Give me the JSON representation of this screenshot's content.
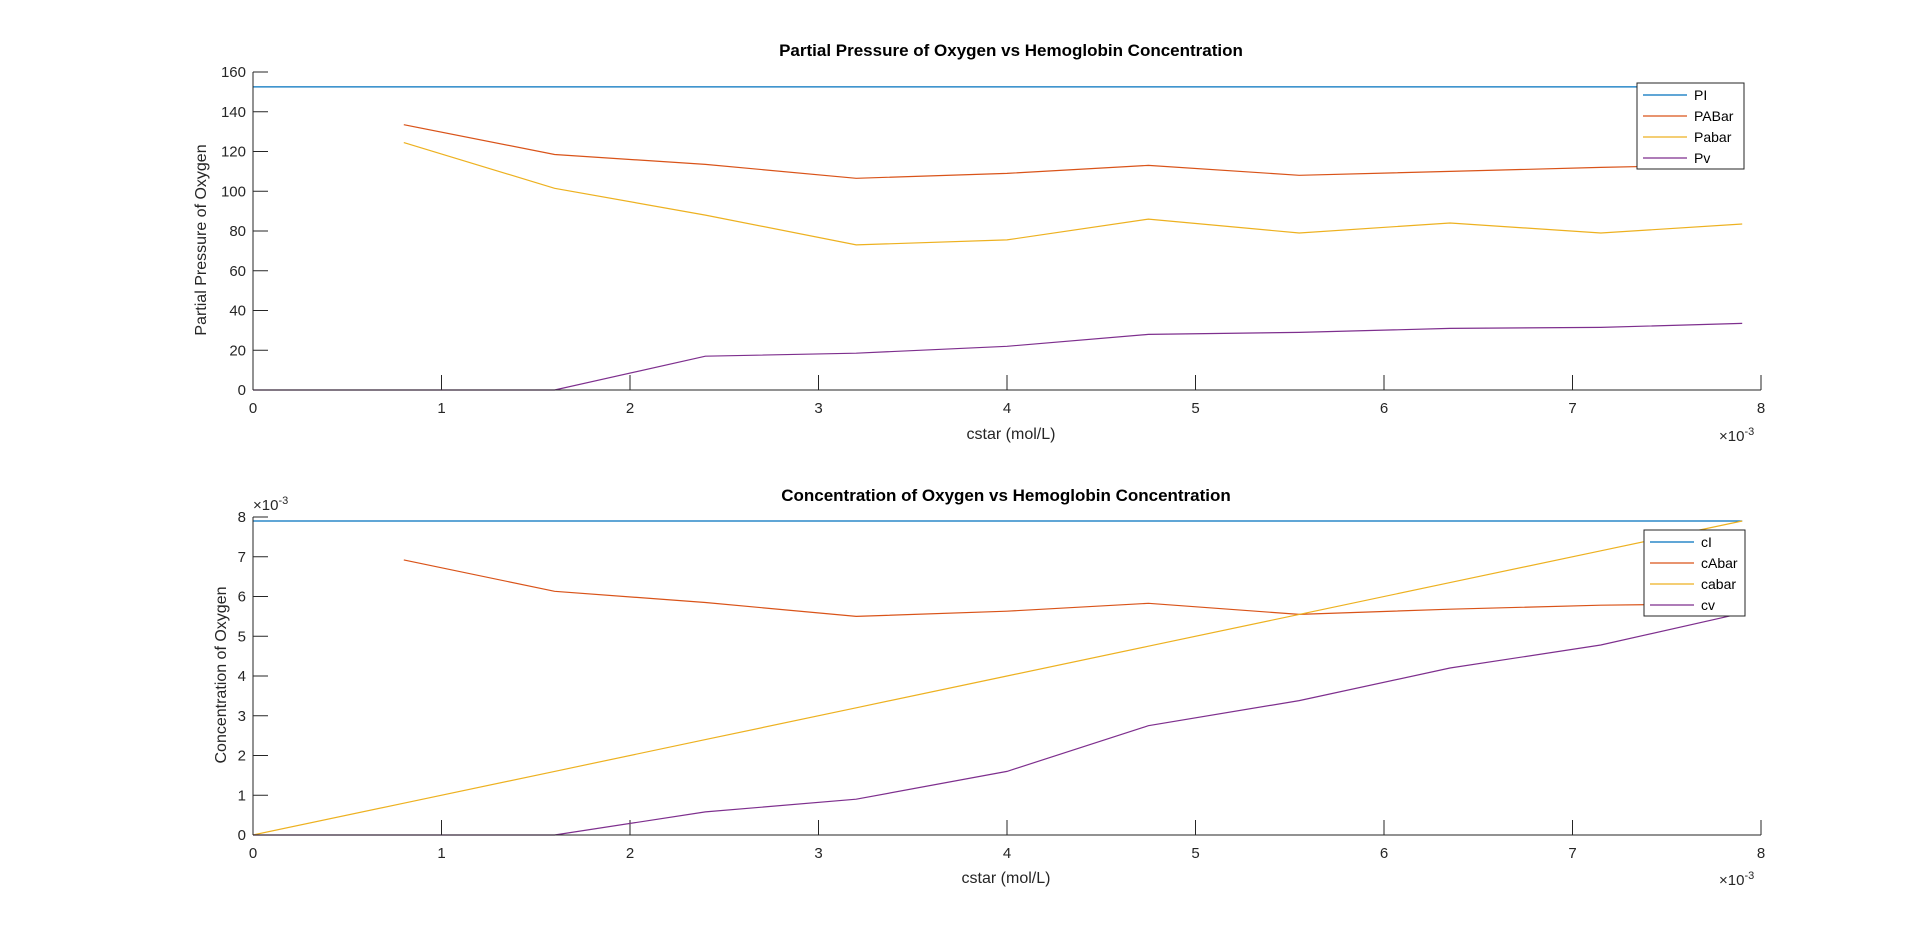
{
  "chart_data": [
    {
      "type": "line",
      "title": "Partial Pressure of Oxygen vs Hemoglobin Concentration",
      "xlabel": "cstar (mol/L)",
      "ylabel": "Partial Pressure of Oxygen",
      "x_exponent_base": "×10",
      "x_exponent_power": "-3",
      "xlim": [
        0,
        8
      ],
      "ylim": [
        0,
        160
      ],
      "xticks": [
        "0",
        "1",
        "2",
        "3",
        "4",
        "5",
        "6",
        "7",
        "8"
      ],
      "yticks": [
        "0",
        "20",
        "40",
        "60",
        "80",
        "100",
        "120",
        "140",
        "160"
      ],
      "grid": false,
      "legend_position": "top-right",
      "x": [
        0,
        0.8,
        1.6,
        2.4,
        3.2,
        4.0,
        4.75,
        5.55,
        6.35,
        7.15,
        7.9
      ],
      "series": [
        {
          "name": "PI",
          "color": "#0072BD",
          "values": [
            152.5,
            152.5,
            152.5,
            152.5,
            152.5,
            152.5,
            152.5,
            152.5,
            152.5,
            152.5,
            152.5
          ]
        },
        {
          "name": "PABar",
          "color": "#D95319",
          "values": [
            null,
            133.5,
            118.5,
            113.5,
            106.5,
            109,
            113,
            108,
            110,
            112,
            113.5
          ]
        },
        {
          "name": "Pabar",
          "color": "#EDB120",
          "values": [
            null,
            124.5,
            101.5,
            88,
            73,
            75.5,
            86,
            79,
            84,
            79,
            83.5
          ]
        },
        {
          "name": "Pv",
          "color": "#7E2F8E",
          "values": [
            0,
            0,
            0,
            17,
            18.5,
            22,
            28,
            29,
            31,
            31.5,
            33.5
          ]
        }
      ]
    },
    {
      "type": "line",
      "title": "Concentration of Oxygen vs Hemoglobin Concentration",
      "xlabel": "cstar (mol/L)",
      "ylabel": "Concentration of Oxygen",
      "x_exponent_base": "×10",
      "x_exponent_power": "-3",
      "y_exponent_base": "×10",
      "y_exponent_power": "-3",
      "xlim": [
        0,
        8
      ],
      "ylim": [
        0,
        8
      ],
      "xticks": [
        "0",
        "1",
        "2",
        "3",
        "4",
        "5",
        "6",
        "7",
        "8"
      ],
      "yticks": [
        "0",
        "1",
        "2",
        "3",
        "4",
        "5",
        "6",
        "7",
        "8"
      ],
      "grid": false,
      "legend_position": "top-right",
      "x": [
        0,
        0.8,
        1.6,
        2.4,
        3.2,
        4.0,
        4.75,
        5.55,
        6.35,
        7.15,
        7.9
      ],
      "series": [
        {
          "name": "cI",
          "color": "#0072BD",
          "values": [
            7.9,
            7.9,
            7.9,
            7.9,
            7.9,
            7.9,
            7.9,
            7.9,
            7.9,
            7.9,
            7.9
          ]
        },
        {
          "name": "cAbar",
          "color": "#D95319",
          "values": [
            null,
            6.92,
            6.13,
            5.85,
            5.5,
            5.63,
            5.83,
            5.55,
            5.68,
            5.78,
            5.82
          ]
        },
        {
          "name": "cabar",
          "color": "#EDB120",
          "values": [
            0,
            0.8,
            1.6,
            2.4,
            3.2,
            4.0,
            4.75,
            5.55,
            6.35,
            7.15,
            7.9
          ]
        },
        {
          "name": "cv",
          "color": "#7E2F8E",
          "values": [
            0,
            0,
            0,
            0.58,
            0.9,
            1.6,
            2.75,
            3.38,
            4.2,
            4.78,
            5.58
          ]
        }
      ]
    }
  ]
}
